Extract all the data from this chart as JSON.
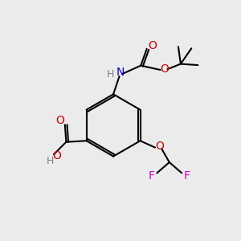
{
  "background_color": "#ebebeb",
  "bond_color": "#000000",
  "bond_width": 1.5,
  "atom_colors": {
    "C": "#000000",
    "H": "#808080",
    "N": "#0000cc",
    "O": "#cc0000",
    "F": "#cc00cc"
  },
  "figsize": [
    3.0,
    3.0
  ],
  "dpi": 100
}
